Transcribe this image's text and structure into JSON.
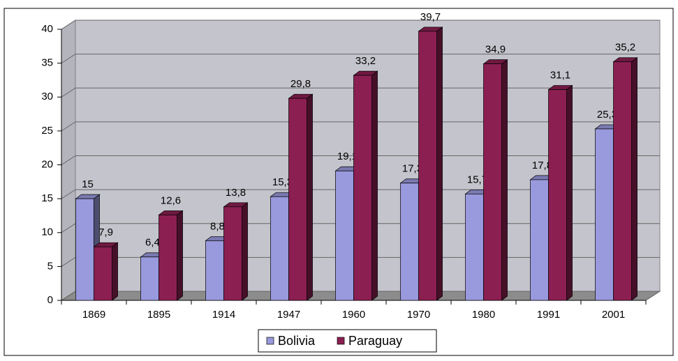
{
  "chart_data": {
    "type": "bar3d",
    "categories": [
      "1869",
      "1895",
      "1914",
      "1947",
      "1960",
      "1970",
      "1980",
      "1991",
      "2001"
    ],
    "series": [
      {
        "name": "Bolivia",
        "color": "#9999dd",
        "values": [
          15,
          6.4,
          8.8,
          15.3,
          19.1,
          17.3,
          15.7,
          17.8,
          25.3
        ],
        "value_labels": [
          "15",
          "6,4",
          "8,8",
          "15,3",
          "19,1",
          "17,3",
          "15,7",
          "17,8",
          "25,3"
        ]
      },
      {
        "name": "Paraguay",
        "color": "#8b1f52",
        "values": [
          7.9,
          12.6,
          13.8,
          29.8,
          33.2,
          39.7,
          34.9,
          31.1,
          35.2
        ],
        "value_labels": [
          "7,9",
          "12,6",
          "13,8",
          "29,8",
          "33,2",
          "39,7",
          "34,9",
          "31,1",
          "35,2"
        ]
      }
    ],
    "ylim": [
      0,
      40
    ],
    "yticks": [
      0,
      5,
      10,
      15,
      20,
      25,
      30,
      35,
      40
    ],
    "grid": true,
    "legend": "bottom"
  }
}
